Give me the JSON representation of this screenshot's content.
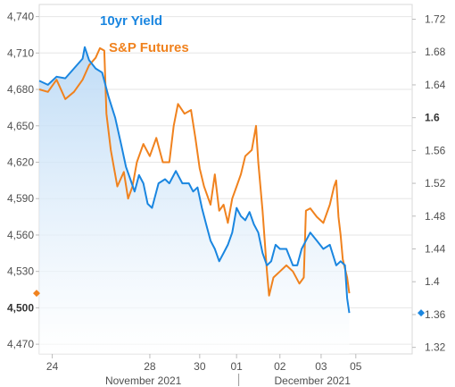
{
  "chart_data": {
    "type": "line",
    "colors": {
      "yield": "#1a86e0",
      "futures": "#f0821e"
    },
    "y_left": {
      "ticks": [
        4470,
        4500,
        4530,
        4560,
        4590,
        4620,
        4650,
        4680,
        4710,
        4740
      ],
      "tick_labels": [
        "4,470",
        "4,500",
        "4,530",
        "4,560",
        "4,590",
        "4,620",
        "4,650",
        "4,680",
        "4,710",
        "4,740"
      ],
      "bold_label": "4,500",
      "range": [
        4462,
        4750
      ]
    },
    "y_right": {
      "ticks": [
        1.32,
        1.36,
        1.4,
        1.44,
        1.48,
        1.52,
        1.56,
        1.6,
        1.64,
        1.68,
        1.72
      ],
      "tick_labels": [
        "1.32",
        "1.36",
        "1.4",
        "1.44",
        "1.48",
        "1.52",
        "1.56",
        "1.6",
        "1.64",
        "1.68",
        "1.72"
      ],
      "bold_label": "1.6",
      "range": [
        1.312,
        1.738
      ]
    },
    "x_axis": {
      "range": [
        0,
        8.6
      ],
      "ticks": [
        0.3,
        2.55,
        3.7,
        4.55,
        5.55,
        6.5,
        7.3
      ],
      "tick_labels": [
        "24",
        "28",
        "30",
        "01",
        "02",
        "03",
        "05"
      ],
      "month_labels": [
        {
          "text": "November 2021",
          "x": 2.4
        },
        {
          "text": "December 2021",
          "x": 6.3
        }
      ],
      "month_divider_x": 4.6
    },
    "series": [
      {
        "name": "10yr Yield",
        "axis": "right",
        "points": [
          [
            0,
            1.645
          ],
          [
            0.2,
            1.64
          ],
          [
            0.4,
            1.65
          ],
          [
            0.6,
            1.648
          ],
          [
            0.8,
            1.66
          ],
          [
            1.0,
            1.672
          ],
          [
            1.05,
            1.686
          ],
          [
            1.15,
            1.67
          ],
          [
            1.3,
            1.66
          ],
          [
            1.45,
            1.655
          ],
          [
            1.6,
            1.625
          ],
          [
            1.75,
            1.6
          ],
          [
            1.9,
            1.565
          ],
          [
            2.0,
            1.54
          ],
          [
            2.1,
            1.525
          ],
          [
            2.2,
            1.51
          ],
          [
            2.3,
            1.53
          ],
          [
            2.4,
            1.52
          ],
          [
            2.5,
            1.495
          ],
          [
            2.6,
            1.49
          ],
          [
            2.75,
            1.52
          ],
          [
            2.9,
            1.525
          ],
          [
            3.0,
            1.52
          ],
          [
            3.15,
            1.535
          ],
          [
            3.3,
            1.52
          ],
          [
            3.45,
            1.52
          ],
          [
            3.55,
            1.51
          ],
          [
            3.65,
            1.515
          ],
          [
            3.75,
            1.49
          ],
          [
            3.85,
            1.47
          ],
          [
            3.95,
            1.45
          ],
          [
            4.05,
            1.44
          ],
          [
            4.15,
            1.425
          ],
          [
            4.25,
            1.435
          ],
          [
            4.35,
            1.445
          ],
          [
            4.45,
            1.46
          ],
          [
            4.55,
            1.49
          ],
          [
            4.65,
            1.48
          ],
          [
            4.75,
            1.475
          ],
          [
            4.85,
            1.485
          ],
          [
            4.95,
            1.47
          ],
          [
            5.05,
            1.46
          ],
          [
            5.15,
            1.435
          ],
          [
            5.25,
            1.42
          ],
          [
            5.35,
            1.425
          ],
          [
            5.45,
            1.445
          ],
          [
            5.55,
            1.44
          ],
          [
            5.7,
            1.44
          ],
          [
            5.85,
            1.42
          ],
          [
            5.95,
            1.42
          ],
          [
            6.05,
            1.44
          ],
          [
            6.15,
            1.45
          ],
          [
            6.25,
            1.46
          ],
          [
            6.4,
            1.45
          ],
          [
            6.55,
            1.44
          ],
          [
            6.7,
            1.445
          ],
          [
            6.85,
            1.42
          ],
          [
            6.95,
            1.425
          ],
          [
            7.05,
            1.42
          ],
          [
            7.1,
            1.38
          ],
          [
            7.15,
            1.362
          ]
        ]
      },
      {
        "name": "S&P Futures",
        "axis": "left",
        "points": [
          [
            0,
            4680
          ],
          [
            0.2,
            4678
          ],
          [
            0.4,
            4688
          ],
          [
            0.6,
            4672
          ],
          [
            0.8,
            4678
          ],
          [
            1.0,
            4688
          ],
          [
            1.15,
            4700
          ],
          [
            1.3,
            4706
          ],
          [
            1.4,
            4714
          ],
          [
            1.5,
            4712
          ],
          [
            1.55,
            4660
          ],
          [
            1.65,
            4630
          ],
          [
            1.8,
            4600
          ],
          [
            1.95,
            4612
          ],
          [
            2.05,
            4590
          ],
          [
            2.15,
            4600
          ],
          [
            2.25,
            4620
          ],
          [
            2.4,
            4635
          ],
          [
            2.55,
            4625
          ],
          [
            2.7,
            4640
          ],
          [
            2.85,
            4620
          ],
          [
            3.0,
            4620
          ],
          [
            3.1,
            4650
          ],
          [
            3.2,
            4668
          ],
          [
            3.35,
            4660
          ],
          [
            3.5,
            4663
          ],
          [
            3.6,
            4640
          ],
          [
            3.7,
            4615
          ],
          [
            3.8,
            4600
          ],
          [
            3.95,
            4585
          ],
          [
            4.05,
            4610
          ],
          [
            4.15,
            4580
          ],
          [
            4.25,
            4585
          ],
          [
            4.35,
            4570
          ],
          [
            4.45,
            4590
          ],
          [
            4.55,
            4600
          ],
          [
            4.65,
            4610
          ],
          [
            4.75,
            4625
          ],
          [
            4.9,
            4630
          ],
          [
            5.0,
            4650
          ],
          [
            5.05,
            4620
          ],
          [
            5.15,
            4580
          ],
          [
            5.25,
            4530
          ],
          [
            5.3,
            4510
          ],
          [
            5.4,
            4525
          ],
          [
            5.55,
            4530
          ],
          [
            5.7,
            4535
          ],
          [
            5.85,
            4530
          ],
          [
            6.0,
            4520
          ],
          [
            6.1,
            4525
          ],
          [
            6.15,
            4580
          ],
          [
            6.25,
            4582
          ],
          [
            6.4,
            4575
          ],
          [
            6.55,
            4570
          ],
          [
            6.7,
            4585
          ],
          [
            6.8,
            4600
          ],
          [
            6.85,
            4605
          ],
          [
            6.9,
            4575
          ],
          [
            6.95,
            4560
          ],
          [
            7.0,
            4540
          ],
          [
            7.1,
            4525
          ],
          [
            7.15,
            4512
          ]
        ]
      }
    ],
    "left_axis_marker": 4512,
    "right_axis_marker": 1.362
  }
}
